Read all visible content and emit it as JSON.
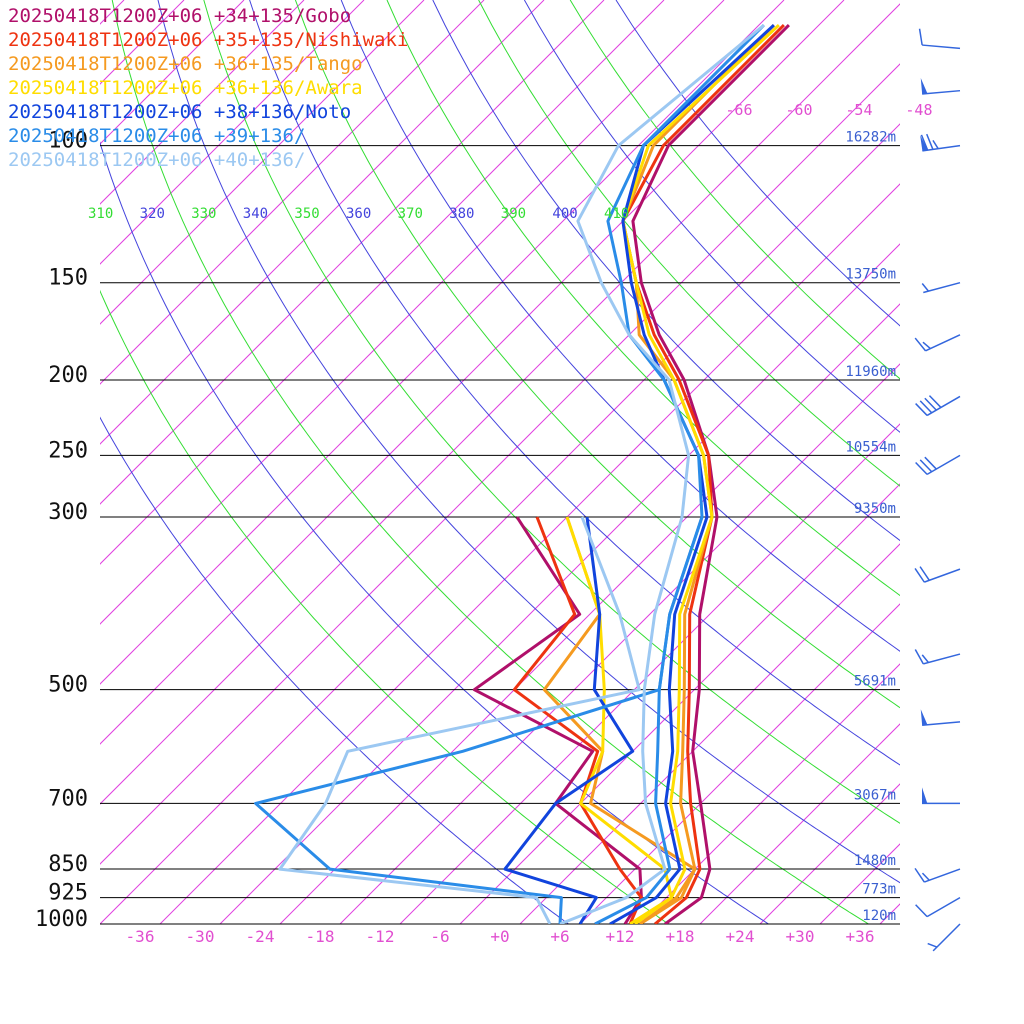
{
  "chart_data": {
    "type": "line",
    "title": "",
    "xlabel": "",
    "ylabel": "",
    "pressure_levels": [
      {
        "p": 100,
        "label": "100",
        "height": "16282m"
      },
      {
        "p": 150,
        "label": "150",
        "height": "13750m"
      },
      {
        "p": 200,
        "label": "200",
        "height": "11960m"
      },
      {
        "p": 250,
        "label": "250",
        "height": "10554m"
      },
      {
        "p": 300,
        "label": "300",
        "height": "9350m"
      },
      {
        "p": 500,
        "label": "500",
        "height": "5691m"
      },
      {
        "p": 700,
        "label": "700",
        "height": "3067m"
      },
      {
        "p": 850,
        "label": "850",
        "height": "1480m"
      },
      {
        "p": 925,
        "label": "925",
        "height": "773m"
      },
      {
        "p": 1000,
        "label": "1000",
        "height": "120m"
      }
    ],
    "x_ticks": [
      "-36",
      "-30",
      "-24",
      "-18",
      "-12",
      "-6",
      "+0",
      "+6",
      "+12",
      "+18",
      "+24",
      "+30",
      "+36"
    ],
    "x_tick_values": [
      -36,
      -30,
      -24,
      -18,
      -12,
      -6,
      0,
      6,
      12,
      18,
      24,
      30,
      36
    ],
    "xlim": [
      -40,
      40
    ],
    "ylim": [
      1000,
      65
    ],
    "y_scale": "log",
    "skew": 1.0,
    "isotherm_labels": [
      "-66",
      "-60",
      "-54",
      "-48"
    ],
    "isotherm_label_values": [
      -66,
      -60,
      -54,
      -48
    ],
    "theta_labels": [
      {
        "text": "310",
        "color": "#33dd33"
      },
      {
        "text": "320",
        "color": "#4444dd"
      },
      {
        "text": "330",
        "color": "#33dd33"
      },
      {
        "text": "340",
        "color": "#4444dd"
      },
      {
        "text": "350",
        "color": "#33dd33"
      },
      {
        "text": "360",
        "color": "#4444dd"
      },
      {
        "text": "370",
        "color": "#33dd33"
      },
      {
        "text": "380",
        "color": "#4444dd"
      },
      {
        "text": "390",
        "color": "#33dd33"
      },
      {
        "text": "400",
        "color": "#4444dd"
      },
      {
        "text": "410",
        "color": "#33dd33"
      }
    ],
    "series": [
      {
        "name": "20250418T1200Z+06 +34+135/Gobo",
        "color": "#b0106a",
        "temperature": [
          [
            1000,
            16.5
          ],
          [
            925,
            17.5
          ],
          [
            850,
            15.5
          ],
          [
            700,
            8.0
          ],
          [
            600,
            2.0
          ],
          [
            500,
            -3.5
          ],
          [
            400,
            -11.0
          ],
          [
            300,
            -19.0
          ],
          [
            250,
            -26.0
          ],
          [
            200,
            -36.0
          ],
          [
            175,
            -43.0
          ],
          [
            150,
            -50.0
          ],
          [
            125,
            -57.0
          ],
          [
            100,
            -61.0
          ],
          [
            70,
            -61.0
          ]
        ],
        "dewpoint": [
          [
            1000,
            12.5
          ],
          [
            925,
            11.5
          ],
          [
            850,
            8.5
          ],
          [
            700,
            -6.5
          ],
          [
            600,
            -8.0
          ],
          [
            500,
            -26.0
          ],
          [
            400,
            -23.0
          ],
          [
            300,
            -39.0
          ]
        ]
      },
      {
        "name": "20250418T1200Z+06 +35+135/Nishiwaki",
        "color": "#ee3311",
        "temperature": [
          [
            1000,
            15.5
          ],
          [
            925,
            16.0
          ],
          [
            850,
            14.5
          ],
          [
            700,
            7.0
          ],
          [
            600,
            1.5
          ],
          [
            500,
            -4.5
          ],
          [
            400,
            -12.0
          ],
          [
            300,
            -19.5
          ],
          [
            250,
            -26.0
          ],
          [
            200,
            -36.5
          ],
          [
            175,
            -43.5
          ],
          [
            150,
            -50.5
          ],
          [
            125,
            -58.0
          ],
          [
            100,
            -61.5
          ],
          [
            70,
            -61.5
          ]
        ],
        "dewpoint": [
          [
            1000,
            13.0
          ],
          [
            925,
            11.5
          ],
          [
            850,
            6.5
          ],
          [
            700,
            -4.0
          ],
          [
            600,
            -7.5
          ],
          [
            500,
            -22.0
          ],
          [
            400,
            -23.5
          ],
          [
            300,
            -37.0
          ]
        ]
      },
      {
        "name": "20250418T1200Z+06 +36+135/Tango",
        "color": "#f59a20",
        "temperature": [
          [
            1000,
            14.0
          ],
          [
            925,
            15.5
          ],
          [
            850,
            14.0
          ],
          [
            700,
            6.0
          ],
          [
            600,
            1.0
          ],
          [
            500,
            -5.0
          ],
          [
            400,
            -12.5
          ],
          [
            300,
            -19.5
          ],
          [
            250,
            -26.5
          ],
          [
            200,
            -37.0
          ],
          [
            175,
            -45.0
          ],
          [
            150,
            -50.5
          ],
          [
            125,
            -58.0
          ],
          [
            100,
            -62.5
          ],
          [
            70,
            -62.5
          ]
        ],
        "dewpoint": [
          [
            1000,
            14.0
          ],
          [
            925,
            15.0
          ],
          [
            850,
            14.0
          ],
          [
            700,
            -3.0
          ],
          [
            600,
            -7.0
          ],
          [
            500,
            -19.0
          ],
          [
            400,
            -21.0
          ],
          [
            300,
            -34.0
          ]
        ]
      },
      {
        "name": "20250418T1200Z+06 +36+136/Awara",
        "color": "#ffdd00",
        "temperature": [
          [
            1000,
            13.0
          ],
          [
            925,
            14.5
          ],
          [
            850,
            13.0
          ],
          [
            700,
            5.0
          ],
          [
            600,
            0.5
          ],
          [
            500,
            -5.5
          ],
          [
            400,
            -13.0
          ],
          [
            300,
            -19.5
          ],
          [
            250,
            -26.5
          ],
          [
            200,
            -37.0
          ],
          [
            175,
            -44.0
          ],
          [
            150,
            -50.5
          ],
          [
            125,
            -58.0
          ],
          [
            100,
            -63.0
          ],
          [
            70,
            -62.0
          ]
        ],
        "dewpoint": [
          [
            1000,
            13.5
          ],
          [
            925,
            14.5
          ],
          [
            850,
            11.0
          ],
          [
            700,
            -4.0
          ],
          [
            600,
            -7.0
          ],
          [
            500,
            -13.0
          ],
          [
            400,
            -21.0
          ],
          [
            300,
            -34.0
          ]
        ]
      },
      {
        "name": "20250418T1200Z+06 +38+136/Noto",
        "color": "#1144dd",
        "temperature": [
          [
            1000,
            11.0
          ],
          [
            925,
            13.0
          ],
          [
            850,
            12.5
          ],
          [
            700,
            4.5
          ],
          [
            600,
            0.0
          ],
          [
            500,
            -6.5
          ],
          [
            400,
            -13.5
          ],
          [
            300,
            -20.0
          ],
          [
            250,
            -27.0
          ],
          [
            200,
            -38.0
          ],
          [
            175,
            -44.5
          ],
          [
            150,
            -51.0
          ],
          [
            125,
            -58.0
          ],
          [
            100,
            -63.5
          ],
          [
            70,
            -62.5
          ]
        ],
        "dewpoint": [
          [
            1000,
            8.0
          ],
          [
            925,
            7.0
          ],
          [
            850,
            -5.0
          ],
          [
            700,
            -6.5
          ],
          [
            600,
            -4.0
          ],
          [
            500,
            -14.0
          ],
          [
            400,
            -21.0
          ],
          [
            300,
            -32.0
          ]
        ]
      },
      {
        "name": "20250418T1200Z+06 +39+136/",
        "color": "#2a8ce8",
        "temperature": [
          [
            1000,
            9.5
          ],
          [
            925,
            12.0
          ],
          [
            850,
            11.5
          ],
          [
            700,
            3.5
          ],
          [
            600,
            -1.5
          ],
          [
            500,
            -7.5
          ],
          [
            400,
            -14.0
          ],
          [
            300,
            -20.5
          ],
          [
            250,
            -27.0
          ],
          [
            200,
            -38.0
          ],
          [
            175,
            -46.0
          ],
          [
            150,
            -52.0
          ],
          [
            125,
            -59.5
          ],
          [
            100,
            -63.5
          ],
          [
            70,
            -63.5
          ]
        ],
        "dewpoint": [
          [
            1000,
            6.0
          ],
          [
            925,
            3.5
          ],
          [
            850,
            -22.5
          ],
          [
            700,
            -36.5
          ],
          [
            600,
            -21.0
          ],
          [
            500,
            -7.5
          ],
          [
            400,
            -14.0
          ],
          [
            300,
            -20.5
          ]
        ]
      },
      {
        "name": "20250418T1200Z+06 +40+136/",
        "color": "#9cc8f2",
        "temperature": [
          [
            1000,
            6.0
          ],
          [
            925,
            10.0
          ],
          [
            850,
            11.0
          ],
          [
            700,
            2.5
          ],
          [
            600,
            -3.0
          ],
          [
            500,
            -9.0
          ],
          [
            400,
            -15.5
          ],
          [
            300,
            -22.5
          ],
          [
            250,
            -28.0
          ],
          [
            200,
            -37.5
          ],
          [
            175,
            -46.0
          ],
          [
            150,
            -54.0
          ],
          [
            125,
            -62.5
          ],
          [
            100,
            -66.0
          ],
          [
            70,
            -63.5
          ]
        ],
        "dewpoint": [
          [
            1000,
            5.0
          ],
          [
            925,
            1.0
          ],
          [
            850,
            -27.5
          ],
          [
            700,
            -29.5
          ],
          [
            600,
            -32.5
          ],
          [
            500,
            -9.5
          ],
          [
            400,
            -19.0
          ],
          [
            300,
            -32.5
          ]
        ]
      }
    ],
    "wind_barbs": [
      {
        "p": 75,
        "dir": 275,
        "speed": 10
      },
      {
        "p": 85,
        "dir": 265,
        "speed": 50
      },
      {
        "p": 100,
        "dir": 262,
        "speed": 75
      },
      {
        "p": 150,
        "dir": 255,
        "speed": 5
      },
      {
        "p": 175,
        "dir": 245,
        "speed": 15
      },
      {
        "p": 210,
        "dir": 240,
        "speed": 40
      },
      {
        "p": 250,
        "dir": 240,
        "speed": 30
      },
      {
        "p": 350,
        "dir": 250,
        "speed": 20
      },
      {
        "p": 450,
        "dir": 255,
        "speed": 15
      },
      {
        "p": 550,
        "dir": 265,
        "speed": 50
      },
      {
        "p": 700,
        "dir": 270,
        "speed": 50
      },
      {
        "p": 850,
        "dir": 250,
        "speed": 15
      },
      {
        "p": 925,
        "dir": 240,
        "speed": 10
      },
      {
        "p": 1000,
        "dir": 225,
        "speed": 5
      }
    ],
    "colors": {
      "isotherm": "#e040e0",
      "dry_adiabat_green": "#33dd33",
      "dry_adiabat_blue": "#4444dd",
      "barb": "#3366dd",
      "isobar": "#000000"
    }
  }
}
